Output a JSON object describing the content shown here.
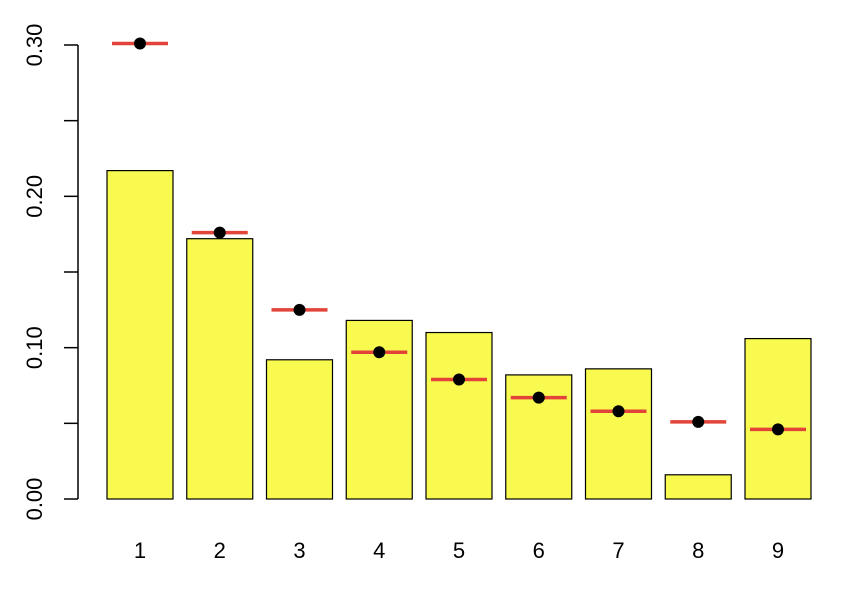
{
  "chart_data": {
    "type": "bar",
    "categories": [
      "1",
      "2",
      "3",
      "4",
      "5",
      "6",
      "7",
      "8",
      "9"
    ],
    "series": [
      {
        "type": "bar",
        "color": "#f9fa4f",
        "values": [
          0.217,
          0.172,
          0.092,
          0.118,
          0.11,
          0.082,
          0.086,
          0.016,
          0.106
        ]
      },
      {
        "type": "point",
        "color": "#000000",
        "line_color": "#e3443a",
        "values": [
          0.301,
          0.176,
          0.125,
          0.097,
          0.079,
          0.067,
          0.058,
          0.051,
          0.046
        ]
      }
    ],
    "ylim": [
      0,
      0.3
    ],
    "yticks": [
      {
        "value": 0,
        "label": "0.00"
      },
      {
        "value": 0.1,
        "label": "0.10"
      },
      {
        "value": 0.2,
        "label": "0.20"
      },
      {
        "value": 0.3,
        "label": "0.30"
      }
    ],
    "minor_yticks": [
      0.05,
      0.15,
      0.25
    ],
    "grid": false
  }
}
